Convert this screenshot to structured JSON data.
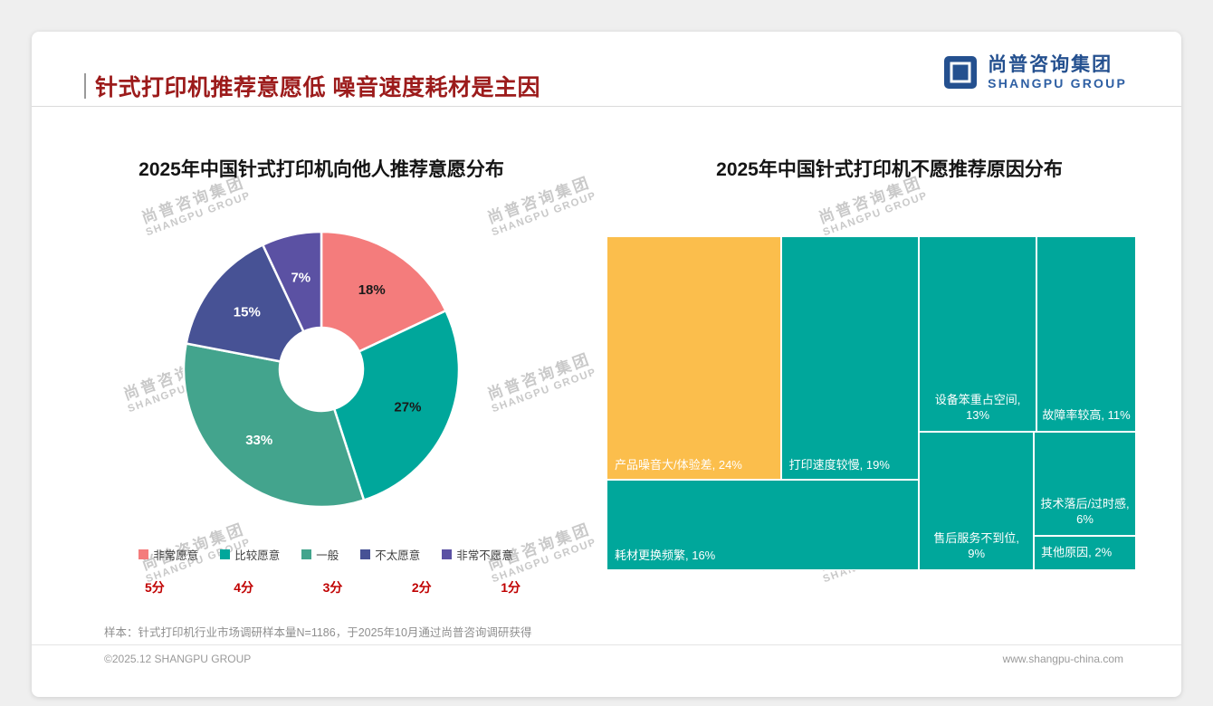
{
  "page": {
    "background_color": "#EFEFEF",
    "title": "针式打印机推荐意愿低 噪音速度耗材是主因",
    "title_color": "#9C1B1B",
    "logo": {
      "cn": "尚普咨询集团",
      "en": "SHANGPU GROUP",
      "color": "#24508F"
    },
    "watermark": {
      "cn": "尚普咨询集团",
      "en": "SHANGPU GROUP"
    },
    "footnote": "样本：针式打印机行业市场调研样本量N=1186，于2025年10月通过尚普咨询调研获得",
    "footer_left": "©2025.12 SHANGPU GROUP",
    "footer_right": "www.shangpu-china.com"
  },
  "chart_data": [
    {
      "type": "pie",
      "subtype": "donut",
      "title": "2025年中国针式打印机向他人推荐意愿分布",
      "categories": [
        "非常愿意",
        "比较愿意",
        "一般",
        "不太愿意",
        "非常不愿意"
      ],
      "values": [
        18,
        27,
        33,
        15,
        7
      ],
      "unit": "%",
      "scores": [
        "5分",
        "4分",
        "3分",
        "2分",
        "1分"
      ],
      "colors": [
        "#F47C7C",
        "#00A79B",
        "#43A48D",
        "#475295",
        "#5B51A3"
      ],
      "value_label_colors": [
        "#1a1a1a",
        "#1a1a1a",
        "#ffffff",
        "#ffffff",
        "#ffffff"
      ],
      "start_angle_deg": 0,
      "legend_position": "bottom"
    },
    {
      "type": "treemap",
      "title": "2025年中国针式打印机不愿推荐原因分布",
      "unit": "%",
      "items": [
        {
          "label": "产品噪音大/体验差",
          "value": 24,
          "color": "#FBBE4C",
          "label_pos": "bottom-left"
        },
        {
          "label": "打印速度较慢",
          "value": 19,
          "color": "#00A79B",
          "label_pos": "bottom-left"
        },
        {
          "label": "耗材更换频繁",
          "value": 16,
          "color": "#00A79B",
          "label_pos": "bottom-left"
        },
        {
          "label": "设备笨重占空间",
          "value": 13,
          "color": "#00A79B",
          "label_pos": "bottom-center"
        },
        {
          "label": "故障率较高",
          "value": 11,
          "color": "#00A79B",
          "label_pos": "bottom-center"
        },
        {
          "label": "售后服务不到位",
          "value": 9,
          "color": "#00A79B",
          "label_pos": "bottom-center"
        },
        {
          "label": "技术落后/过时感",
          "value": 6,
          "color": "#00A79B",
          "label_pos": "bottom-center"
        },
        {
          "label": "其他原因",
          "value": 2,
          "color": "#00A79B",
          "label_pos": "center-left"
        }
      ]
    }
  ]
}
